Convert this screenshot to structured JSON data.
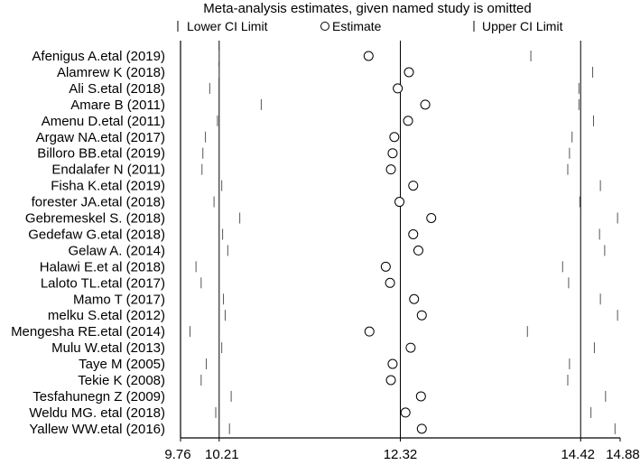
{
  "chart_data": {
    "type": "scatter",
    "title": "Meta-analysis estimates, given named study is omitted",
    "legend": {
      "placement": "top",
      "entries": [
        {
          "symbol": "tick",
          "label": "Lower CI Limit"
        },
        {
          "symbol": "circle",
          "label": "Estimate"
        },
        {
          "symbol": "tick",
          "label": "Upper CI Limit"
        }
      ]
    },
    "xlim": [
      9.76,
      14.88
    ],
    "x_ticks": [
      9.76,
      10.21,
      12.32,
      14.42,
      14.88
    ],
    "x_tick_labels": [
      "9.76",
      "10.21",
      "12.32",
      "14.42",
      "14.88"
    ],
    "reference_lines": [
      10.21,
      12.32,
      14.42
    ],
    "studies": [
      {
        "name": "Afenigus A.etal (2019)",
        "lower": 10.21,
        "estimate": 11.95,
        "upper": 13.84
      },
      {
        "name": "Alamrew K (2018)",
        "lower": 10.21,
        "estimate": 12.42,
        "upper": 14.56
      },
      {
        "name": "Ali S.etal (2018)",
        "lower": 10.1,
        "estimate": 12.29,
        "upper": 14.4
      },
      {
        "name": "Amare B (2011)",
        "lower": 10.7,
        "estimate": 12.61,
        "upper": 14.4
      },
      {
        "name": "Amenu D.etal (2011)",
        "lower": 10.19,
        "estimate": 12.41,
        "upper": 14.57
      },
      {
        "name": "Argaw NA.etal (2017)",
        "lower": 10.05,
        "estimate": 12.25,
        "upper": 14.32
      },
      {
        "name": "Billoro BB.etal (2019)",
        "lower": 10.02,
        "estimate": 12.23,
        "upper": 14.29
      },
      {
        "name": "Endalafer N (2011)",
        "lower": 10.01,
        "estimate": 12.21,
        "upper": 14.27
      },
      {
        "name": "Fisha K.etal  (2019)",
        "lower": 10.24,
        "estimate": 12.47,
        "upper": 14.65
      },
      {
        "name": "forester JA.etal (2018)",
        "lower": 10.15,
        "estimate": 12.31,
        "upper": 14.41
      },
      {
        "name": "Gebremeskel S. (2018)",
        "lower": 10.45,
        "estimate": 12.68,
        "upper": 14.85
      },
      {
        "name": "Gedefaw G.etal (2018)",
        "lower": 10.25,
        "estimate": 12.47,
        "upper": 14.64
      },
      {
        "name": "Gelaw A. (2014)",
        "lower": 10.31,
        "estimate": 12.53,
        "upper": 14.7
      },
      {
        "name": "Halawi E.et al (2018)",
        "lower": 9.94,
        "estimate": 12.15,
        "upper": 14.21
      },
      {
        "name": "Laloto TL.etal (2017)",
        "lower": 10.0,
        "estimate": 12.2,
        "upper": 14.28
      },
      {
        "name": "Mamo T (2017)",
        "lower": 10.26,
        "estimate": 12.48,
        "upper": 14.65
      },
      {
        "name": "melku S.etal (2012)",
        "lower": 10.28,
        "estimate": 12.57,
        "upper": 14.85
      },
      {
        "name": "Mengesha RE.etal (2014)",
        "lower": 9.87,
        "estimate": 11.96,
        "upper": 13.8
      },
      {
        "name": "Mulu W.etal  (2013)",
        "lower": 10.24,
        "estimate": 12.44,
        "upper": 14.58
      },
      {
        "name": "Taye M (2005)",
        "lower": 10.06,
        "estimate": 12.23,
        "upper": 14.29
      },
      {
        "name": "Tekie  K (2008)",
        "lower": 10.0,
        "estimate": 12.21,
        "upper": 14.27
      },
      {
        "name": "Tesfahunegn Z (2009)",
        "lower": 10.35,
        "estimate": 12.56,
        "upper": 14.71
      },
      {
        "name": "Weldu MG. etal (2018)",
        "lower": 10.17,
        "estimate": 12.38,
        "upper": 14.54
      },
      {
        "name": "Yallew WW.etal (2016)",
        "lower": 10.33,
        "estimate": 12.57,
        "upper": 14.82
      }
    ]
  }
}
